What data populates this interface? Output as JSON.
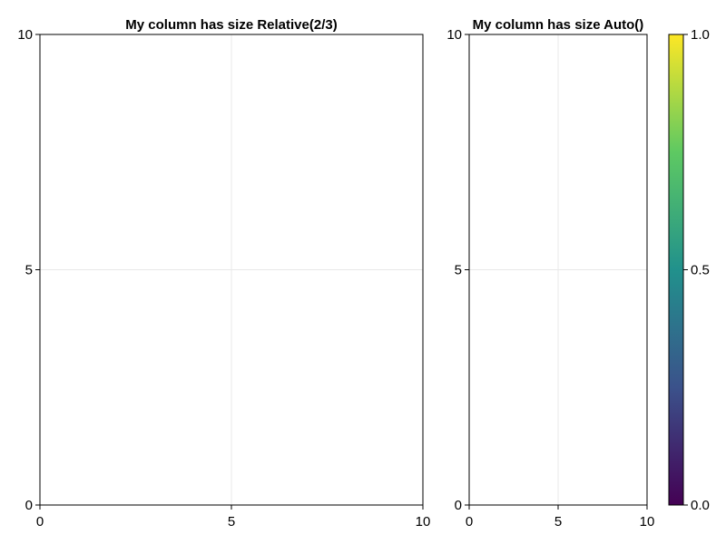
{
  "chart_data": [
    {
      "type": "scatter",
      "title": "My column has size Relative(2/3)",
      "xlabel": "",
      "ylabel": "",
      "xlim": [
        0,
        10
      ],
      "ylim": [
        0,
        10
      ],
      "xticks": [
        "0",
        "5",
        "10"
      ],
      "yticks": [
        "0",
        "5",
        "10"
      ],
      "grid": true,
      "series": []
    },
    {
      "type": "scatter",
      "title": "My column has size Auto()",
      "xlabel": "",
      "ylabel": "",
      "xlim": [
        0,
        10
      ],
      "ylim": [
        0,
        10
      ],
      "xticks": [
        "0",
        "5",
        "10"
      ],
      "yticks": [
        "0",
        "5",
        "10"
      ],
      "grid": true,
      "series": []
    }
  ],
  "colorbar": {
    "colormap": "viridis",
    "limits": [
      0.0,
      1.0
    ],
    "ticks": [
      "0.0",
      "0.5",
      "1.0"
    ],
    "colors": [
      "#440154",
      "#3b528b",
      "#21918c",
      "#5ec962",
      "#fde725"
    ]
  }
}
